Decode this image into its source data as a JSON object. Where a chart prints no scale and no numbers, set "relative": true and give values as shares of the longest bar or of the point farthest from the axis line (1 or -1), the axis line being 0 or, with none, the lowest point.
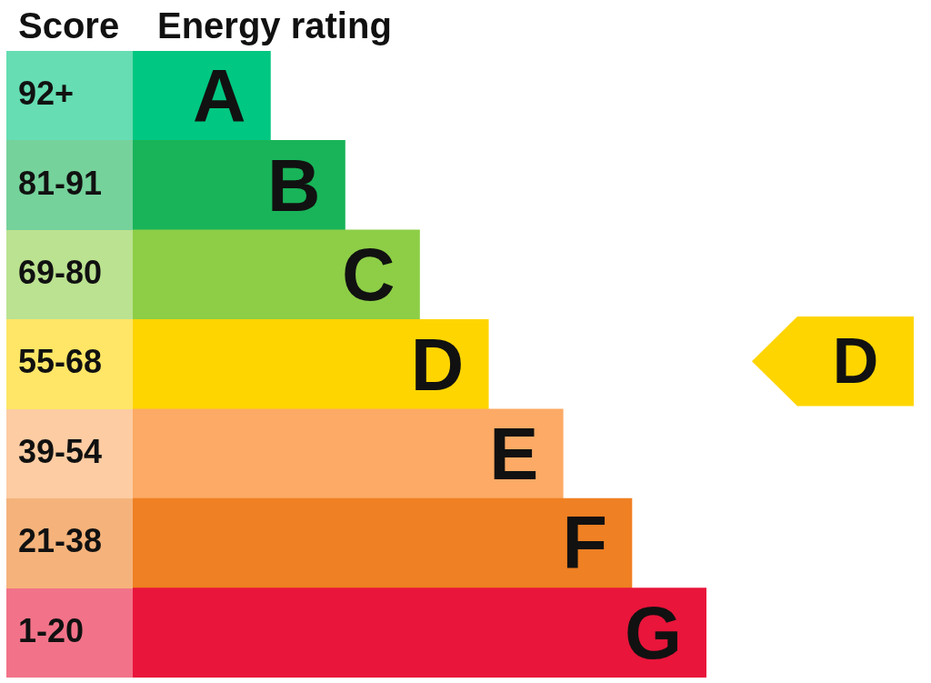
{
  "chart_data": {
    "type": "bar",
    "orientation": "horizontal",
    "relative": true,
    "title": "Energy rating",
    "ylabel": "Score",
    "categories": [
      "92+",
      "81-91",
      "69-80",
      "55-68",
      "39-54",
      "21-38",
      "1-20"
    ],
    "values": [
      0.24,
      0.37,
      0.5,
      0.62,
      0.75,
      0.87,
      1
    ],
    "colors": [
      "#00c781",
      "#19b459",
      "#8dce46",
      "#ffd500",
      "#fcaa65",
      "#ef8023",
      "#e9153b"
    ],
    "annotations": [
      {
        "text": "A",
        "x": 0.24,
        "y": "92+"
      },
      {
        "text": "B",
        "x": 0.37,
        "y": "81-91"
      },
      {
        "text": "C",
        "x": 0.5,
        "y": "69-80"
      },
      {
        "text": "D",
        "x": 0.62,
        "y": "55-68"
      },
      {
        "text": "E",
        "x": 0.75,
        "y": "39-54"
      },
      {
        "text": "F",
        "x": 0.87,
        "y": "21-38"
      },
      {
        "text": "G",
        "x": 1,
        "y": "1-20"
      },
      "D"
    ]
  }
}
